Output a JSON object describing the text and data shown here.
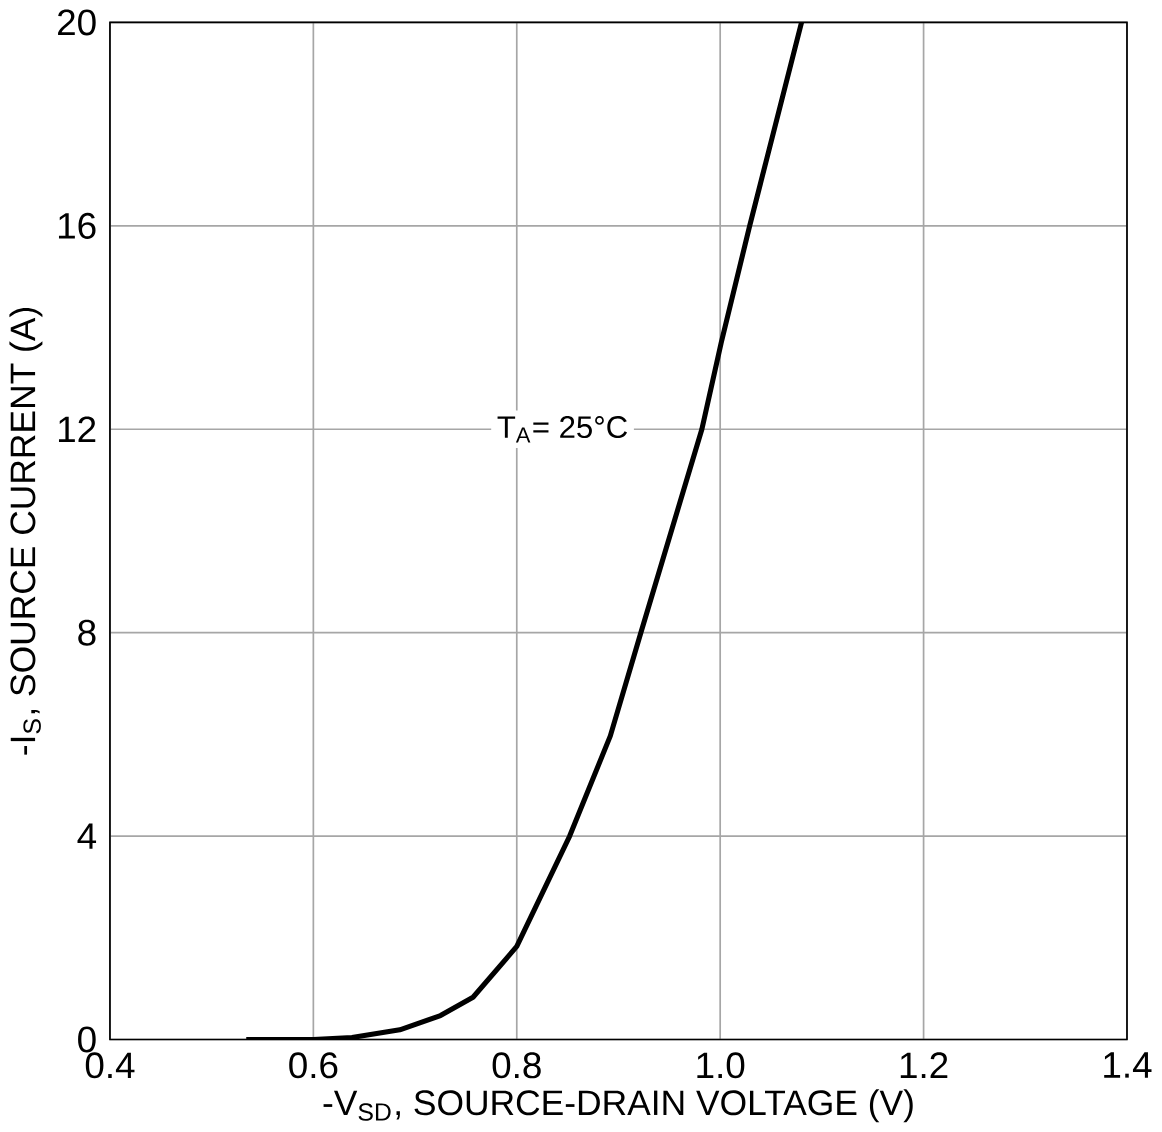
{
  "chart_data": {
    "type": "line",
    "xlabel": "-V$_{SD}$, SOURCE-DRAIN VOLTAGE (V)",
    "ylabel": "-I$_{S}$, SOURCE CURRENT (A)",
    "xlim": [
      0.4,
      1.4
    ],
    "ylim": [
      0,
      20
    ],
    "xticks": [
      0.4,
      0.6,
      0.8,
      {
        "value": 1.0,
        "label": "1.0"
      },
      1.2,
      1.4
    ],
    "yticks": [
      0,
      4,
      8,
      12,
      16,
      20
    ],
    "grid": true,
    "marker": "none",
    "line_style": "solid",
    "annotations": [
      "T$_{A}$= 25°C"
    ],
    "series": [
      {
        "color": "#000000",
        "x": [
          0.534,
          0.6,
          0.638,
          0.685,
          0.725,
          0.757,
          0.8,
          0.852,
          0.892,
          0.922,
          0.982,
          1.001,
          1.029,
          1.08
        ],
        "values": [
          0,
          0,
          0.04,
          0.19,
          0.47,
          0.83,
          1.83,
          4.0,
          5.97,
          8.0,
          12.0,
          13.7,
          16.0,
          20.0
        ]
      }
    ]
  }
}
